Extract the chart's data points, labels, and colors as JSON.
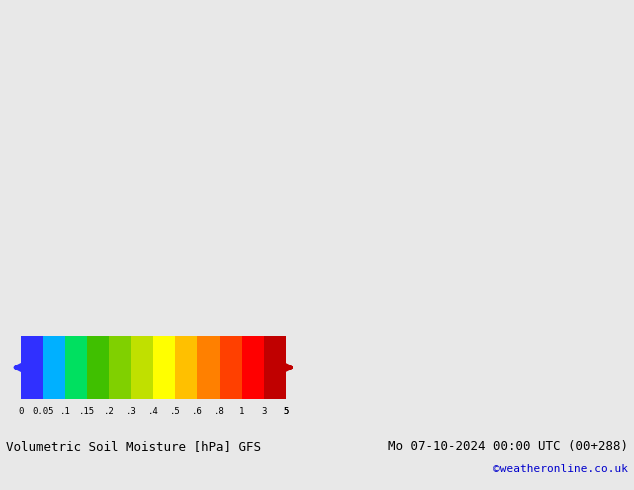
{
  "title_left": "Volumetric Soil Moisture [hPa] GFS",
  "title_right": "Mo 07-10-2024 00:00 UTC (00+288)",
  "subtitle_right": "©weatheronline.co.uk",
  "colorbar_ticks": [
    0,
    0.05,
    0.1,
    0.15,
    0.2,
    0.3,
    0.4,
    0.5,
    0.6,
    0.8,
    1,
    3,
    5
  ],
  "colorbar_tick_labels": [
    "0",
    "0.05",
    ".1",
    ".15",
    ".2",
    ".3",
    ".4",
    ".5",
    ".6",
    ".8",
    "1",
    "3",
    "5"
  ],
  "colorbar_colors": [
    "#3030ff",
    "#00b0ff",
    "#00e060",
    "#40c000",
    "#80d000",
    "#c0e000",
    "#ffff00",
    "#ffc000",
    "#ff8000",
    "#ff4000",
    "#ff0000",
    "#c00000"
  ],
  "background_color": "#e8e8e8",
  "map_bg": "#e0e0e0",
  "figsize": [
    6.34,
    4.9
  ],
  "dpi": 100
}
